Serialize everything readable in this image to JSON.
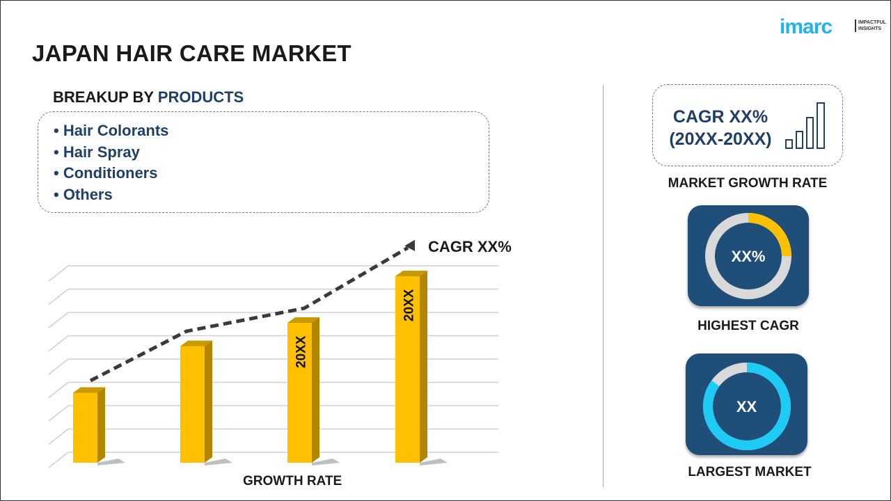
{
  "title": "JAPAN HAIR CARE MARKET",
  "logo": {
    "word": "imarc",
    "tagline_1": "IMPACTFUL",
    "tagline_2": "INSIGHTS"
  },
  "breakup": {
    "prefix": "BREAKUP BY ",
    "highlight": "PRODUCTS"
  },
  "products": [
    "• Hair Colorants",
    "• Hair Spray",
    "• Conditioners",
    "• Others"
  ],
  "chart_data": {
    "type": "bar",
    "categories": [
      "",
      "",
      "",
      ""
    ],
    "values": [
      3,
      5,
      6,
      8
    ],
    "bar_labels": [
      "",
      "",
      "20XX",
      "20XX"
    ],
    "trend_label": "CAGR XX%",
    "xlabel": "GROWTH RATE",
    "ylabel": "",
    "ylim": [
      0,
      8
    ],
    "grid": true,
    "bar_color": "#ffc000",
    "bar_side_color": "#b38600"
  },
  "market_growth": {
    "cagr_line1": "CAGR XX%",
    "cagr_line2": "(20XX-20XX)",
    "label": "MARKET GROWTH RATE"
  },
  "highest_cagr": {
    "value": "XX%",
    "label": "HIGHEST CAGR",
    "fill": 0.25,
    "color": "#ffc000"
  },
  "largest_market": {
    "value": "XX",
    "label": "LARGEST MARKET",
    "fill": 0.85,
    "color": "#1ecbf5"
  },
  "colors": {
    "navy": "#1f3f66",
    "card": "#1f4e79",
    "brand": "#1eb5e8"
  }
}
